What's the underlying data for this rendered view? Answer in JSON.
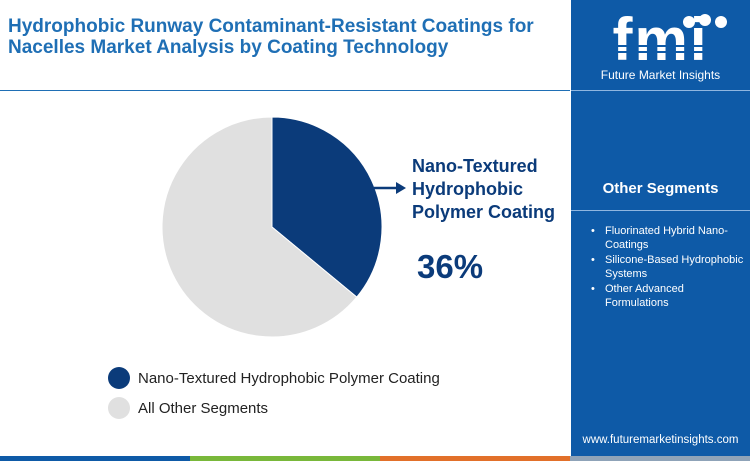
{
  "title": "Hydrophobic Runway Contaminant-Resistant Coatings for Nacelles Market Analysis by Coating Technology",
  "colors": {
    "primary_dark": "#0b3b7a",
    "title_blue": "#1f6fb5",
    "sidebar_blue": "#0e5aa7",
    "slice_other": "#e0e0e0"
  },
  "chart_data": {
    "type": "pie",
    "title": "Hydrophobic Runway Contaminant-Resistant Coatings for Nacelles Market Analysis by Coating Technology",
    "slices": [
      {
        "name": "Nano-Textured Hydrophobic Polymer Coating",
        "value": 36,
        "color": "#0b3b7a"
      },
      {
        "name": "All Other Segments",
        "value": 64,
        "color": "#e0e0e0"
      }
    ],
    "start_angle_deg": 0,
    "direction": "clockwise",
    "legend_position": "bottom-left"
  },
  "callout": {
    "label": "Nano-Textured Hydrophobic Polymer Coating",
    "value": "36%"
  },
  "legend": [
    {
      "label": "Nano-Textured Hydrophobic Polymer Coating",
      "color": "#0b3b7a"
    },
    {
      "label": "All Other Segments",
      "color": "#e0e0e0"
    }
  ],
  "sidebar": {
    "brand_mark": "fmi",
    "brand_name": "Future Market Insights",
    "other_segments_title": "Other Segments",
    "other_segments": [
      "Fluorinated Hybrid Nano-Coatings",
      "Silicone-Based Hydrophobic Systems",
      "Other Advanced Formulations"
    ],
    "website": "www.futuremarketinsights.com"
  },
  "bottom_bar_colors": [
    "#0e5aa7",
    "#79b83a",
    "#e2702a",
    "#8fa3b8"
  ]
}
